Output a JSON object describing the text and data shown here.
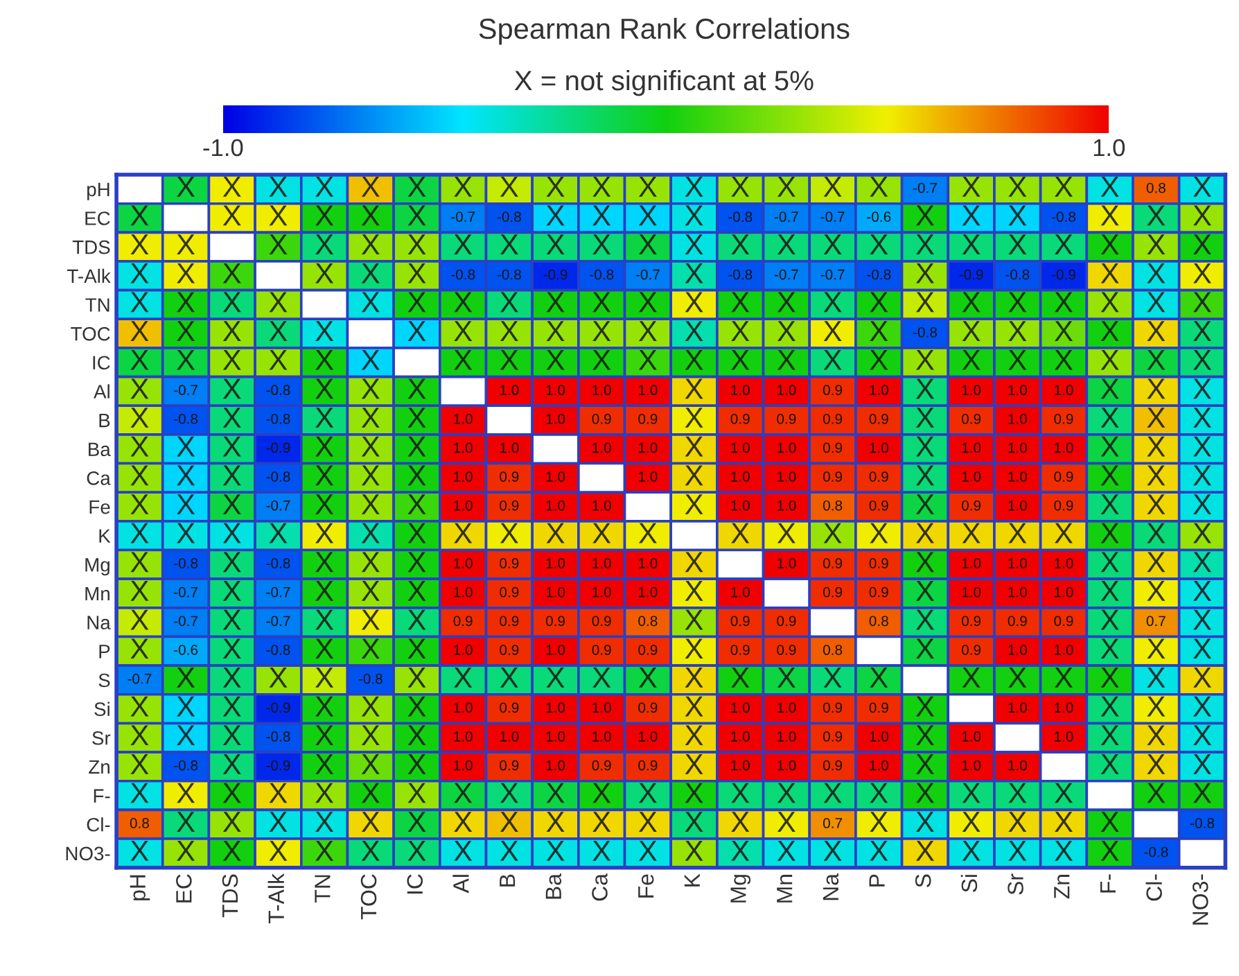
{
  "chart_data": {
    "type": "heatmap",
    "title": "Spearman Rank Correlations",
    "subtitle": "X = not significant at 5%",
    "categories": [
      "pH",
      "EC",
      "TDS",
      "T-Alk",
      "TN",
      "TOC",
      "IC",
      "Al",
      "B",
      "Ba",
      "Ca",
      "Fe",
      "K",
      "Mg",
      "Mn",
      "Na",
      "P",
      "S",
      "Si",
      "Sr",
      "Zn",
      "F-",
      "Cl-",
      "NO3-"
    ],
    "y_categories": [
      "pH",
      "EC",
      "TDS",
      "T-Alk",
      "TN",
      "TOC",
      "IC",
      "Al",
      "B",
      "Ba",
      "Ca",
      "Fe",
      "K",
      "Mg",
      "Mn",
      "Na",
      "P",
      "S",
      "Si",
      "Sr",
      "Zn",
      "F-",
      "Cl-",
      "NO3-"
    ],
    "clim": [
      -1,
      1
    ],
    "cticks": [
      {
        "value": -1,
        "label": "-1.0"
      },
      {
        "value": 1,
        "label": "1.0"
      }
    ],
    "cells": [
      [
        null,
        -0.1,
        0.5,
        -0.4,
        -0.4,
        0.6,
        -0.1,
        0.3,
        0.4,
        0.3,
        0.3,
        0.3,
        -0.4,
        0.3,
        0.3,
        0.4,
        0.3,
        -0.7,
        0.3,
        0.3,
        0.3,
        -0.4,
        0.8,
        -0.4
      ],
      [
        -0.1,
        null,
        0.5,
        0.5,
        0.0,
        0.0,
        -0.1,
        -0.7,
        -0.8,
        -0.5,
        -0.5,
        -0.5,
        -0.4,
        -0.8,
        -0.7,
        -0.7,
        -0.6,
        0.0,
        -0.5,
        -0.5,
        -0.8,
        0.5,
        -0.2,
        0.3
      ],
      [
        0.5,
        0.5,
        null,
        0.1,
        -0.2,
        0.3,
        0.3,
        -0.2,
        -0.2,
        -0.2,
        -0.2,
        -0.1,
        -0.4,
        -0.2,
        -0.2,
        -0.2,
        -0.2,
        -0.2,
        -0.2,
        -0.2,
        -0.2,
        0.0,
        0.3,
        0.0
      ],
      [
        -0.4,
        0.5,
        0.1,
        null,
        0.3,
        -0.2,
        0.3,
        -0.8,
        -0.8,
        -0.9,
        -0.8,
        -0.7,
        -0.3,
        -0.8,
        -0.7,
        -0.7,
        -0.8,
        0.3,
        -0.9,
        -0.8,
        -0.9,
        0.55,
        -0.4,
        0.5
      ],
      [
        -0.4,
        0.0,
        -0.2,
        0.3,
        null,
        -0.4,
        0.0,
        0.0,
        -0.2,
        0.0,
        0.0,
        0.0,
        0.5,
        0.0,
        0.0,
        -0.2,
        0.0,
        0.4,
        0.0,
        0.0,
        0.0,
        0.3,
        -0.4,
        0.1
      ],
      [
        0.6,
        0.0,
        0.3,
        -0.2,
        -0.4,
        null,
        -0.5,
        0.3,
        0.3,
        0.3,
        0.3,
        0.3,
        -0.3,
        0.3,
        0.3,
        0.5,
        0.1,
        -0.8,
        0.3,
        0.3,
        0.2,
        0.0,
        0.55,
        -0.2
      ],
      [
        -0.1,
        -0.1,
        0.3,
        0.3,
        0.0,
        -0.5,
        null,
        0.0,
        0.0,
        0.0,
        0.0,
        0.1,
        0.0,
        0.0,
        0.0,
        -0.2,
        0.0,
        0.3,
        0.0,
        0.0,
        0.0,
        0.3,
        -0.1,
        -0.2
      ],
      [
        0.3,
        -0.7,
        -0.2,
        -0.8,
        0.0,
        0.3,
        0.0,
        null,
        1.0,
        1.0,
        1.0,
        1.0,
        0.55,
        1.0,
        1.0,
        0.9,
        1.0,
        -0.2,
        1.0,
        1.0,
        1.0,
        -0.1,
        0.55,
        -0.4
      ],
      [
        0.4,
        -0.8,
        -0.2,
        -0.8,
        -0.2,
        0.3,
        0.0,
        1.0,
        null,
        1.0,
        0.9,
        0.9,
        0.5,
        0.9,
        0.9,
        0.9,
        0.9,
        -0.2,
        0.9,
        1.0,
        0.9,
        -0.2,
        0.6,
        -0.4
      ],
      [
        0.3,
        -0.5,
        -0.2,
        -0.9,
        0.0,
        0.3,
        0.0,
        1.0,
        1.0,
        null,
        1.0,
        1.0,
        0.55,
        1.0,
        1.0,
        0.9,
        1.0,
        -0.2,
        1.0,
        1.0,
        1.0,
        -0.1,
        0.55,
        -0.4
      ],
      [
        0.3,
        -0.5,
        -0.2,
        -0.8,
        0.0,
        0.3,
        0.0,
        1.0,
        0.9,
        1.0,
        null,
        1.0,
        0.55,
        1.0,
        1.0,
        0.9,
        0.9,
        -0.2,
        1.0,
        1.0,
        0.9,
        0.0,
        0.55,
        -0.4
      ],
      [
        0.3,
        -0.5,
        -0.1,
        -0.7,
        0.0,
        0.3,
        0.1,
        1.0,
        0.9,
        1.0,
        1.0,
        null,
        0.5,
        1.0,
        1.0,
        0.8,
        0.9,
        -0.1,
        0.9,
        1.0,
        0.9,
        -0.2,
        0.55,
        -0.4
      ],
      [
        -0.4,
        -0.4,
        -0.4,
        -0.3,
        0.5,
        -0.3,
        0.0,
        0.55,
        0.5,
        0.55,
        0.55,
        0.5,
        null,
        0.55,
        0.5,
        0.3,
        0.5,
        0.55,
        0.55,
        0.55,
        0.55,
        0.0,
        -0.2,
        0.3
      ],
      [
        0.3,
        -0.8,
        -0.2,
        -0.8,
        0.0,
        0.3,
        0.0,
        1.0,
        0.9,
        1.0,
        1.0,
        1.0,
        0.55,
        null,
        1.0,
        0.9,
        0.9,
        0.0,
        1.0,
        1.0,
        1.0,
        -0.2,
        0.55,
        -0.3
      ],
      [
        0.3,
        -0.7,
        -0.2,
        -0.7,
        0.0,
        0.3,
        0.0,
        1.0,
        0.9,
        1.0,
        1.0,
        1.0,
        0.5,
        1.0,
        null,
        0.9,
        0.9,
        -0.1,
        1.0,
        1.0,
        1.0,
        -0.2,
        0.5,
        -0.4
      ],
      [
        0.4,
        -0.7,
        -0.2,
        -0.7,
        -0.2,
        0.5,
        -0.2,
        0.9,
        0.9,
        0.9,
        0.9,
        0.8,
        0.3,
        0.9,
        0.9,
        null,
        0.8,
        -0.2,
        0.9,
        0.9,
        0.9,
        -0.2,
        0.7,
        -0.4
      ],
      [
        0.3,
        -0.6,
        -0.2,
        -0.8,
        0.0,
        0.1,
        0.0,
        1.0,
        0.9,
        1.0,
        0.9,
        0.9,
        0.5,
        0.9,
        0.9,
        0.8,
        null,
        -0.1,
        0.9,
        1.0,
        1.0,
        -0.2,
        0.5,
        -0.4
      ],
      [
        -0.7,
        0.0,
        -0.2,
        0.3,
        0.4,
        -0.8,
        0.3,
        -0.2,
        -0.2,
        -0.2,
        -0.2,
        -0.1,
        0.55,
        0.0,
        -0.1,
        -0.2,
        -0.1,
        null,
        0.0,
        0.0,
        0.0,
        0.0,
        -0.4,
        0.55
      ],
      [
        0.3,
        -0.5,
        -0.2,
        -0.9,
        0.0,
        0.3,
        0.0,
        1.0,
        0.9,
        1.0,
        1.0,
        0.9,
        0.55,
        1.0,
        1.0,
        0.9,
        0.9,
        0.0,
        null,
        1.0,
        1.0,
        -0.2,
        0.5,
        -0.4
      ],
      [
        0.3,
        -0.5,
        -0.2,
        -0.8,
        0.0,
        0.3,
        0.0,
        1.0,
        1.0,
        1.0,
        1.0,
        1.0,
        0.55,
        1.0,
        1.0,
        0.9,
        1.0,
        0.0,
        1.0,
        null,
        1.0,
        -0.2,
        0.55,
        -0.4
      ],
      [
        0.3,
        -0.8,
        -0.2,
        -0.9,
        0.0,
        0.2,
        0.0,
        1.0,
        0.9,
        1.0,
        0.9,
        0.9,
        0.55,
        1.0,
        1.0,
        0.9,
        1.0,
        0.0,
        1.0,
        1.0,
        null,
        -0.2,
        0.55,
        -0.4
      ],
      [
        -0.4,
        0.5,
        0.0,
        0.55,
        0.3,
        0.0,
        0.3,
        -0.1,
        -0.2,
        -0.1,
        0.0,
        -0.2,
        0.0,
        -0.2,
        -0.2,
        -0.2,
        -0.2,
        0.0,
        -0.2,
        -0.2,
        -0.2,
        null,
        0.0,
        0.0
      ],
      [
        0.8,
        -0.2,
        0.3,
        -0.4,
        -0.4,
        0.55,
        -0.1,
        0.55,
        0.6,
        0.55,
        0.55,
        0.55,
        -0.2,
        0.55,
        0.5,
        0.7,
        0.5,
        -0.4,
        0.5,
        0.55,
        0.55,
        0.0,
        null,
        -0.8
      ],
      [
        -0.4,
        0.3,
        0.0,
        0.5,
        0.1,
        -0.2,
        -0.2,
        -0.4,
        -0.4,
        -0.4,
        -0.4,
        -0.4,
        0.3,
        -0.3,
        -0.4,
        -0.4,
        -0.4,
        0.55,
        -0.4,
        -0.4,
        -0.4,
        0.0,
        -0.8,
        null
      ]
    ],
    "cell_labels": [
      [
        null,
        "X",
        "X",
        "X",
        "X",
        "X",
        "X",
        "X",
        "X",
        "X",
        "X",
        "X",
        "X",
        "X",
        "X",
        "X",
        "X",
        "-0.7",
        "X",
        "X",
        "X",
        "X",
        "0.8",
        "X"
      ],
      [
        "X",
        null,
        "X",
        "X",
        "X",
        "X",
        "X",
        "-0.7",
        "-0.8",
        "X",
        "X",
        "X",
        "X",
        "-0.8",
        "-0.7",
        "-0.7",
        "-0.6",
        "X",
        "X",
        "X",
        "-0.8",
        "X",
        "X",
        "X"
      ],
      [
        "X",
        "X",
        null,
        "X",
        "X",
        "X",
        "X",
        "X",
        "X",
        "X",
        "X",
        "X",
        "X",
        "X",
        "X",
        "X",
        "X",
        "X",
        "X",
        "X",
        "X",
        "X",
        "X",
        "X"
      ],
      [
        "X",
        "X",
        "X",
        null,
        "X",
        "X",
        "X",
        "-0.8",
        "-0.8",
        "-0.9",
        "-0.8",
        "-0.7",
        "X",
        "-0.8",
        "-0.7",
        "-0.7",
        "-0.8",
        "X",
        "-0.9",
        "-0.8",
        "-0.9",
        "X",
        "X",
        "X"
      ],
      [
        "X",
        "X",
        "X",
        "X",
        null,
        "X",
        "X",
        "X",
        "X",
        "X",
        "X",
        "X",
        "X",
        "X",
        "X",
        "X",
        "X",
        "X",
        "X",
        "X",
        "X",
        "X",
        "X",
        "X"
      ],
      [
        "X",
        "X",
        "X",
        "X",
        "X",
        null,
        "X",
        "X",
        "X",
        "X",
        "X",
        "X",
        "X",
        "X",
        "X",
        "X",
        "X",
        "-0.8",
        "X",
        "X",
        "X",
        "X",
        "X",
        "X"
      ],
      [
        "X",
        "X",
        "X",
        "X",
        "X",
        "X",
        null,
        "X",
        "X",
        "X",
        "X",
        "X",
        "X",
        "X",
        "X",
        "X",
        "X",
        "X",
        "X",
        "X",
        "X",
        "X",
        "X",
        "X"
      ],
      [
        "X",
        "-0.7",
        "X",
        "-0.8",
        "X",
        "X",
        "X",
        null,
        "1.0",
        "1.0",
        "1.0",
        "1.0",
        "X",
        "1.0",
        "1.0",
        "0.9",
        "1.0",
        "X",
        "1.0",
        "1.0",
        "1.0",
        "X",
        "X",
        "X"
      ],
      [
        "X",
        "-0.8",
        "X",
        "-0.8",
        "X",
        "X",
        "X",
        "1.0",
        null,
        "1.0",
        "0.9",
        "0.9",
        "X",
        "0.9",
        "0.9",
        "0.9",
        "0.9",
        "X",
        "0.9",
        "1.0",
        "0.9",
        "X",
        "X",
        "X"
      ],
      [
        "X",
        "X",
        "X",
        "-0.9",
        "X",
        "X",
        "X",
        "1.0",
        "1.0",
        null,
        "1.0",
        "1.0",
        "X",
        "1.0",
        "1.0",
        "0.9",
        "1.0",
        "X",
        "1.0",
        "1.0",
        "1.0",
        "X",
        "X",
        "X"
      ],
      [
        "X",
        "X",
        "X",
        "-0.8",
        "X",
        "X",
        "X",
        "1.0",
        "0.9",
        "1.0",
        null,
        "1.0",
        "X",
        "1.0",
        "1.0",
        "0.9",
        "0.9",
        "X",
        "1.0",
        "1.0",
        "0.9",
        "X",
        "X",
        "X"
      ],
      [
        "X",
        "X",
        "X",
        "-0.7",
        "X",
        "X",
        "X",
        "1.0",
        "0.9",
        "1.0",
        "1.0",
        null,
        "X",
        "1.0",
        "1.0",
        "0.8",
        "0.9",
        "X",
        "0.9",
        "1.0",
        "0.9",
        "X",
        "X",
        "X"
      ],
      [
        "X",
        "X",
        "X",
        "X",
        "X",
        "X",
        "X",
        "X",
        "X",
        "X",
        "X",
        "X",
        null,
        "X",
        "X",
        "X",
        "X",
        "X",
        "X",
        "X",
        "X",
        "X",
        "X",
        "X"
      ],
      [
        "X",
        "-0.8",
        "X",
        "-0.8",
        "X",
        "X",
        "X",
        "1.0",
        "0.9",
        "1.0",
        "1.0",
        "1.0",
        "X",
        null,
        "1.0",
        "0.9",
        "0.9",
        "X",
        "1.0",
        "1.0",
        "1.0",
        "X",
        "X",
        "X"
      ],
      [
        "X",
        "-0.7",
        "X",
        "-0.7",
        "X",
        "X",
        "X",
        "1.0",
        "0.9",
        "1.0",
        "1.0",
        "1.0",
        "X",
        "1.0",
        null,
        "0.9",
        "0.9",
        "X",
        "1.0",
        "1.0",
        "1.0",
        "X",
        "X",
        "X"
      ],
      [
        "X",
        "-0.7",
        "X",
        "-0.7",
        "X",
        "X",
        "X",
        "0.9",
        "0.9",
        "0.9",
        "0.9",
        "0.8",
        "X",
        "0.9",
        "0.9",
        null,
        "0.8",
        "X",
        "0.9",
        "0.9",
        "0.9",
        "X",
        "0.7",
        "X"
      ],
      [
        "X",
        "-0.6",
        "X",
        "-0.8",
        "X",
        "X",
        "X",
        "1.0",
        "0.9",
        "1.0",
        "0.9",
        "0.9",
        "X",
        "0.9",
        "0.9",
        "0.8",
        null,
        "X",
        "0.9",
        "1.0",
        "1.0",
        "X",
        "X",
        "X"
      ],
      [
        "-0.7",
        "X",
        "X",
        "X",
        "X",
        "-0.8",
        "X",
        "X",
        "X",
        "X",
        "X",
        "X",
        "X",
        "X",
        "X",
        "X",
        "X",
        null,
        "X",
        "X",
        "X",
        "X",
        "X",
        "X"
      ],
      [
        "X",
        "X",
        "X",
        "-0.9",
        "X",
        "X",
        "X",
        "1.0",
        "0.9",
        "1.0",
        "1.0",
        "0.9",
        "X",
        "1.0",
        "1.0",
        "0.9",
        "0.9",
        "X",
        null,
        "1.0",
        "1.0",
        "X",
        "X",
        "X"
      ],
      [
        "X",
        "X",
        "X",
        "-0.8",
        "X",
        "X",
        "X",
        "1.0",
        "1.0",
        "1.0",
        "1.0",
        "1.0",
        "X",
        "1.0",
        "1.0",
        "0.9",
        "1.0",
        "X",
        "1.0",
        null,
        "1.0",
        "X",
        "X",
        "X"
      ],
      [
        "X",
        "-0.8",
        "X",
        "-0.9",
        "X",
        "X",
        "X",
        "1.0",
        "0.9",
        "1.0",
        "0.9",
        "0.9",
        "X",
        "1.0",
        "1.0",
        "0.9",
        "1.0",
        "X",
        "1.0",
        "1.0",
        null,
        "X",
        "X",
        "X"
      ],
      [
        "X",
        "X",
        "X",
        "X",
        "X",
        "X",
        "X",
        "X",
        "X",
        "X",
        "X",
        "X",
        "X",
        "X",
        "X",
        "X",
        "X",
        "X",
        "X",
        "X",
        "X",
        null,
        "X",
        "X"
      ],
      [
        "0.8",
        "X",
        "X",
        "X",
        "X",
        "X",
        "X",
        "X",
        "X",
        "X",
        "X",
        "X",
        "X",
        "X",
        "X",
        "0.7",
        "X",
        "X",
        "X",
        "X",
        "X",
        "X",
        null,
        "-0.8"
      ],
      [
        "X",
        "X",
        "X",
        "X",
        "X",
        "X",
        "X",
        "X",
        "X",
        "X",
        "X",
        "X",
        "X",
        "X",
        "X",
        "X",
        "X",
        "X",
        "X",
        "X",
        "X",
        "X",
        "-0.8",
        null
      ]
    ]
  }
}
